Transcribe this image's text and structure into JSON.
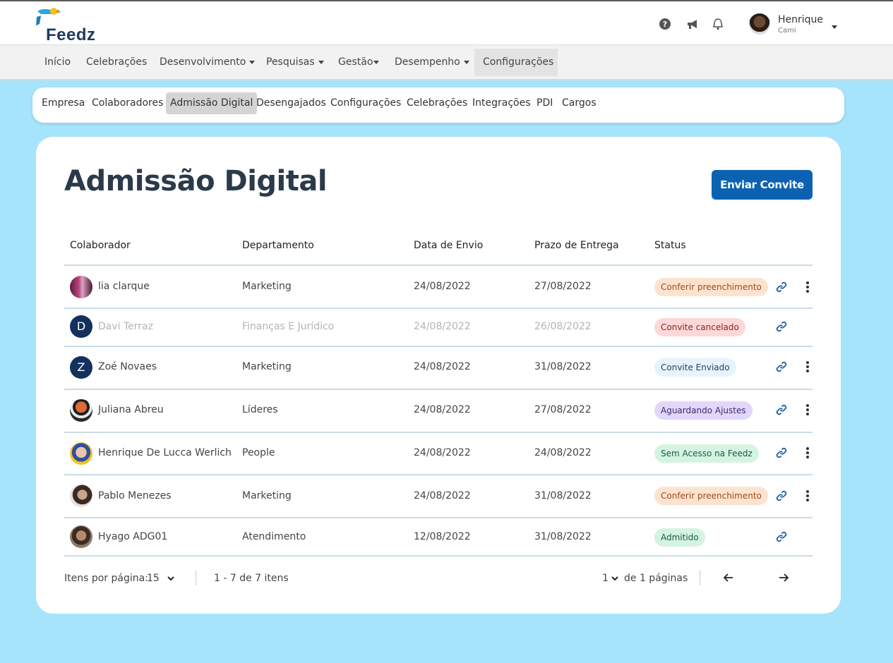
{
  "app": {
    "logo_text": "Feedz"
  },
  "header": {
    "user_name": "Henrique",
    "user_company": "Cami",
    "icons": [
      "help-icon",
      "megaphone-icon",
      "bell-icon"
    ]
  },
  "nav": {
    "items": [
      {
        "label": "Início",
        "dropdown": false
      },
      {
        "label": "Celebrações",
        "dropdown": false
      },
      {
        "label": "Desenvolvimento",
        "dropdown": true
      },
      {
        "label": "Pesquisas",
        "dropdown": true
      },
      {
        "label": "Gestão",
        "dropdown": true
      },
      {
        "label": "Desempenho",
        "dropdown": true
      },
      {
        "label": "Configurações",
        "dropdown": false
      }
    ],
    "active": "Configurações"
  },
  "subnav": {
    "items": [
      "Empresa",
      "Colaboradores",
      "Admissão Digital",
      "Desengajados",
      "Configurações",
      "Celebrações",
      "Integrações",
      "PDI",
      "Cargos"
    ],
    "active": "Admissão Digital"
  },
  "page": {
    "title": "Admissão Digital",
    "invite_button": "Enviar Convite"
  },
  "table": {
    "headers": [
      "Colaborador",
      "Departamento",
      "Data de Envio",
      "Prazo de Entrega",
      "Status"
    ],
    "rows": [
      {
        "name": "lia clarque",
        "department": "Marketing",
        "sent": "24/08/2022",
        "due": "27/08/2022",
        "status": "Conferir preenchimento",
        "menu": true,
        "muted": false
      },
      {
        "name": "Davi Terraz",
        "initial": "D",
        "department": "Finanças E Jurídico",
        "sent": "24/08/2022",
        "due": "26/08/2022",
        "status": "Convite cancelado",
        "menu": false,
        "muted": true
      },
      {
        "name": "Zoé Novaes",
        "initial": "Z",
        "department": "Marketing",
        "sent": "24/08/2022",
        "due": "31/08/2022",
        "status": "Convite Enviado",
        "menu": true,
        "muted": false
      },
      {
        "name": "Juliana Abreu",
        "department": "Líderes",
        "sent": "24/08/2022",
        "due": "27/08/2022",
        "status": "Aguardando Ajustes",
        "menu": true,
        "muted": false
      },
      {
        "name": "Henrique De Lucca Werlich",
        "department": "People",
        "sent": "24/08/2022",
        "due": "24/08/2022",
        "status": "Sem Acesso na Feedz",
        "menu": true,
        "muted": false
      },
      {
        "name": "Pablo Menezes",
        "department": "Marketing",
        "sent": "24/08/2022",
        "due": "31/08/2022",
        "status": "Conferir preenchimento",
        "menu": true,
        "muted": false
      },
      {
        "name": "Hyago ADG01",
        "department": "Atendimento",
        "sent": "12/08/2022",
        "due": "31/08/2022",
        "status": "Admitido",
        "menu": false,
        "muted": false
      }
    ]
  },
  "pagination": {
    "items_per_page_label": "Itens por página:",
    "items_per_page": "15",
    "range": "1 - 7 de 7 itens",
    "current_page": "1",
    "pages_label": "de 1 páginas"
  },
  "colors": {
    "background": "#a6e4fb",
    "primary": "#0c62b2",
    "badge_orange": "#fde3cf",
    "badge_red": "#fdd8d8",
    "badge_blue": "#e6f3fd",
    "badge_purple": "#e2d7fb",
    "badge_green": "#d4f4e2"
  }
}
